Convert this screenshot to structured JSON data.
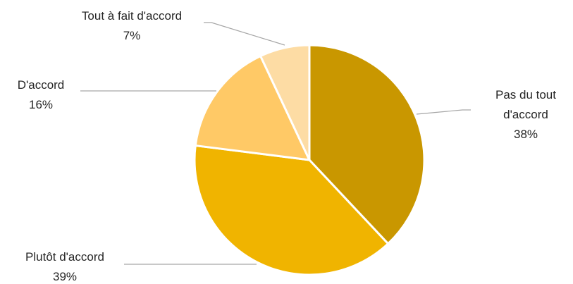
{
  "chart_data": {
    "type": "pie",
    "slices": [
      {
        "label": "Pas du tout d'accord",
        "label_lines": [
          "Pas du tout",
          "d'accord"
        ],
        "percent_label": "38%",
        "value": 38,
        "color": "#C99700"
      },
      {
        "label": "Plutôt d'accord",
        "label_lines": [
          "Plutôt d'accord"
        ],
        "percent_label": "39%",
        "value": 39,
        "color": "#F0B400"
      },
      {
        "label": "D'accord",
        "label_lines": [
          "D'accord"
        ],
        "percent_label": "16%",
        "value": 16,
        "color": "#FFC966"
      },
      {
        "label": "Tout à fait d'accord",
        "label_lines": [
          "Tout à fait d'accord"
        ],
        "percent_label": "7%",
        "value": 7,
        "color": "#FDDCA4"
      }
    ],
    "start_angle_deg": 0,
    "direction": "clockwise",
    "slice_border_color": "#ffffff",
    "leader_line_color": "#A6A6A6",
    "label_color": "#262626"
  }
}
